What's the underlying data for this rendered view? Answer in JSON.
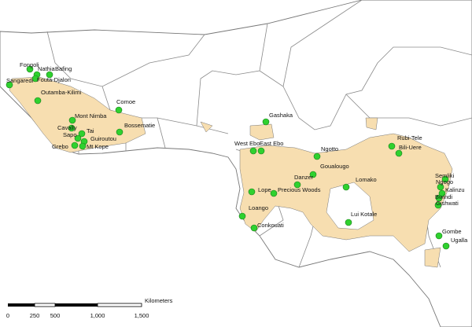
{
  "sites": [
    "Fongoli",
    "Nathia",
    "Bafing",
    "Sangaredi",
    "Fouta-Djalon",
    "Outamba-Kilimi",
    "Comoe",
    "Mont Nimba",
    "Bossematie",
    "Cavally",
    "Tai",
    "Sapo",
    "Guiroutou",
    "Grebo",
    "Mt Kope",
    "Gashaka",
    "West Ebo",
    "East Ebo",
    "Ngotto",
    "Rubi-Tele",
    "Bili-Uere",
    "Goualougo",
    "Danzer",
    "Lomako",
    "Lope",
    "Precious Woods",
    "Semliki",
    "Ngogo",
    "Kalinzu",
    "Bwindi",
    "Gishwati",
    "Loango",
    "Lui Kotale",
    "Conkouati",
    "Gombe",
    "Ugalla"
  ],
  "scale": {
    "labels": [
      "0",
      "250",
      "500",
      "1,000",
      "1,500"
    ],
    "unit": "Kilometers"
  }
}
